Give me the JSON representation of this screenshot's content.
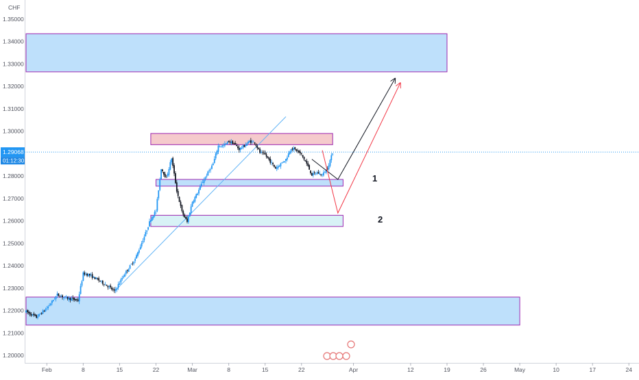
{
  "axis": {
    "currency_label": "CHF",
    "y_ticks": [
      "1.35000",
      "1.34000",
      "1.33000",
      "1.32000",
      "1.31000",
      "1.30000",
      "1.29000",
      "1.28000",
      "1.27000",
      "1.26000",
      "1.25000",
      "1.24000",
      "1.23000",
      "1.22000",
      "1.21000",
      "1.20000"
    ],
    "x_ticks": [
      "Feb",
      "8",
      "15",
      "22",
      "Mar",
      "8",
      "15",
      "22",
      "Apr",
      "12",
      "19",
      "26",
      "May",
      "10",
      "17",
      "24"
    ],
    "price_tag": {
      "value": "1.29068",
      "countdown": "01:12:30"
    }
  },
  "colors": {
    "up": "#2196f3",
    "down": "#131722",
    "blue_zone": "#bbdefb",
    "light_zone": "#d6f1f5",
    "red_zone": "#f4c7c9",
    "zone_border": "#9c27b0",
    "trendline": "#64b5f6",
    "arrow_black": "#131722",
    "arrow_red": "#f23645",
    "price_line": "#2196f3"
  },
  "annotations": {
    "zone1_label": "1",
    "zone2_label": "2"
  },
  "chart_data": {
    "type": "candlestick",
    "instrument_axis_label": "CHF",
    "last_price": 1.29068,
    "ylim": [
      1.197,
      1.355
    ],
    "x_start": "2021-01-28",
    "x_ticks": [
      {
        "label": "Feb",
        "date": "2021-02-01"
      },
      {
        "label": "8",
        "date": "2021-02-08"
      },
      {
        "label": "15",
        "date": "2021-02-15"
      },
      {
        "label": "22",
        "date": "2021-02-22"
      },
      {
        "label": "Mar",
        "date": "2021-03-01"
      },
      {
        "label": "8",
        "date": "2021-03-08"
      },
      {
        "label": "15",
        "date": "2021-03-15"
      },
      {
        "label": "22",
        "date": "2021-03-22"
      },
      {
        "label": "Apr",
        "date": "2021-04-01"
      },
      {
        "label": "12",
        "date": "2021-04-12"
      },
      {
        "label": "19",
        "date": "2021-04-19"
      },
      {
        "label": "26",
        "date": "2021-04-26"
      },
      {
        "label": "May",
        "date": "2021-05-03"
      },
      {
        "label": "10",
        "date": "2021-05-10"
      },
      {
        "label": "17",
        "date": "2021-05-17"
      },
      {
        "label": "24",
        "date": "2021-05-24"
      }
    ],
    "price_path": [
      [
        "2021-01-28",
        1.2195
      ],
      [
        "2021-01-30",
        1.217
      ],
      [
        "2021-02-01",
        1.221
      ],
      [
        "2021-02-03",
        1.227
      ],
      [
        "2021-02-05",
        1.2255
      ],
      [
        "2021-02-07",
        1.2245
      ],
      [
        "2021-02-08",
        1.2365
      ],
      [
        "2021-02-09",
        1.236
      ],
      [
        "2021-02-11",
        1.2335
      ],
      [
        "2021-02-13",
        1.2305
      ],
      [
        "2021-02-14",
        1.2285
      ],
      [
        "2021-02-16",
        1.2365
      ],
      [
        "2021-02-18",
        1.243
      ],
      [
        "2021-02-20",
        1.2545
      ],
      [
        "2021-02-21",
        1.261
      ],
      [
        "2021-02-22",
        1.2645
      ],
      [
        "2021-02-23",
        1.2835
      ],
      [
        "2021-02-24",
        1.279
      ],
      [
        "2021-02-25",
        1.288
      ],
      [
        "2021-02-26",
        1.2735
      ],
      [
        "2021-02-27",
        1.264
      ],
      [
        "2021-02-28",
        1.2595
      ],
      [
        "2021-03-01",
        1.2685
      ],
      [
        "2021-03-02",
        1.2725
      ],
      [
        "2021-03-03",
        1.2775
      ],
      [
        "2021-03-04",
        1.2815
      ],
      [
        "2021-03-05",
        1.2855
      ],
      [
        "2021-03-06",
        1.2935
      ],
      [
        "2021-03-07",
        1.2935
      ],
      [
        "2021-03-08",
        1.2955
      ],
      [
        "2021-03-09",
        1.2945
      ],
      [
        "2021-03-10",
        1.292
      ],
      [
        "2021-03-11",
        1.2935
      ],
      [
        "2021-03-12",
        1.2955
      ],
      [
        "2021-03-13",
        1.295
      ],
      [
        "2021-03-14",
        1.2905
      ],
      [
        "2021-03-15",
        1.2895
      ],
      [
        "2021-03-16",
        1.2865
      ],
      [
        "2021-03-17",
        1.2835
      ],
      [
        "2021-03-18",
        1.2855
      ],
      [
        "2021-03-19",
        1.2875
      ],
      [
        "2021-03-20",
        1.2925
      ],
      [
        "2021-03-21",
        1.2915
      ],
      [
        "2021-03-22",
        1.2895
      ],
      [
        "2021-03-23",
        1.2855
      ],
      [
        "2021-03-24",
        1.2805
      ],
      [
        "2021-03-25",
        1.2815
      ],
      [
        "2021-03-26",
        1.2805
      ],
      [
        "2021-03-27",
        1.2835
      ],
      [
        "2021-03-28",
        1.2905
      ]
    ],
    "zones": [
      {
        "kind": "resistance",
        "from": "2021-01-28",
        "to": "2021-04-19",
        "y1": 1.3265,
        "y2": 1.3435,
        "style": "blue"
      },
      {
        "kind": "resistance",
        "from": "2021-02-21",
        "to": "2021-03-28",
        "y1": 1.294,
        "y2": 1.299,
        "style": "red"
      },
      {
        "kind": "support",
        "label": "1",
        "from": "2021-02-22",
        "to": "2021-03-30",
        "y1": 1.2755,
        "y2": 1.2785,
        "style": "blue"
      },
      {
        "kind": "support",
        "label": "2",
        "from": "2021-02-21",
        "to": "2021-03-30",
        "y1": 1.2575,
        "y2": 1.2625,
        "style": "light"
      },
      {
        "kind": "demand",
        "from": "2021-01-28",
        "to": "2021-05-03",
        "y1": 1.2135,
        "y2": 1.226,
        "style": "blue"
      }
    ],
    "trendline": {
      "from": [
        "2021-02-14",
        1.2285
      ],
      "to": [
        "2021-03-19",
        1.3065
      ]
    },
    "projections": [
      {
        "color": "black",
        "points": [
          [
            "2021-03-24",
            1.2875
          ],
          [
            "2021-03-29",
            1.2785
          ],
          [
            "2021-04-09",
            1.3235
          ]
        ]
      },
      {
        "color": "red",
        "points": [
          [
            "2021-03-26",
            1.2915
          ],
          [
            "2021-03-29",
            1.2635
          ],
          [
            "2021-04-10",
            1.3215
          ]
        ]
      }
    ]
  }
}
